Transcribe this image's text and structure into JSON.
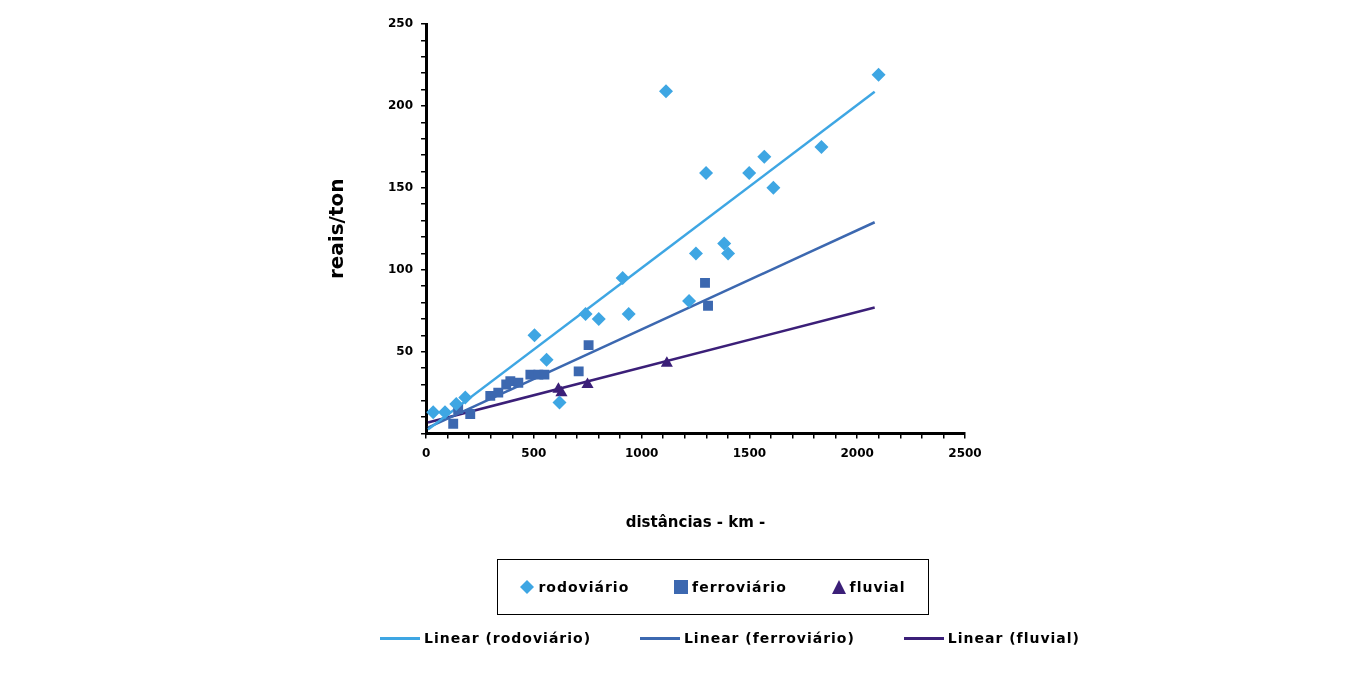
{
  "chart_data": {
    "type": "scatter",
    "xlabel": "distâncias - km -",
    "ylabel": "reais/ton",
    "xlim": [
      0,
      2500
    ],
    "ylim": [
      0,
      250
    ],
    "xticks": [
      0,
      {
        "value": 100,
        "label": null
      },
      {
        "value": 200,
        "label": null
      },
      {
        "value": 300,
        "label": null
      },
      {
        "value": 400,
        "label": null
      },
      500,
      {
        "value": 600,
        "label": null
      },
      {
        "value": 700,
        "label": null
      },
      {
        "value": 800,
        "label": null
      },
      {
        "value": 900,
        "label": null
      },
      1000,
      {
        "value": 1100,
        "label": null
      },
      {
        "value": 1200,
        "label": null
      },
      {
        "value": 1300,
        "label": null
      },
      {
        "value": 1400,
        "label": null
      },
      1500,
      {
        "value": 1600,
        "label": null
      },
      {
        "value": 1700,
        "label": null
      },
      {
        "value": 1800,
        "label": null
      },
      {
        "value": 1900,
        "label": null
      },
      2000,
      {
        "value": 2100,
        "label": null
      },
      {
        "value": 2200,
        "label": null
      },
      {
        "value": 2300,
        "label": null
      },
      {
        "value": 2400,
        "label": null
      },
      2500
    ],
    "yticks": [
      {
        "value": 0,
        "label": null
      },
      {
        "value": 10,
        "label": null
      },
      {
        "value": 20,
        "label": null
      },
      {
        "value": 30,
        "label": null
      },
      {
        "value": 40,
        "label": null
      },
      50,
      {
        "value": 60,
        "label": null
      },
      {
        "value": 70,
        "label": null
      },
      {
        "value": 80,
        "label": null
      },
      {
        "value": 90,
        "label": null
      },
      100,
      {
        "value": 110,
        "label": null
      },
      {
        "value": 120,
        "label": null
      },
      {
        "value": 130,
        "label": null
      },
      {
        "value": 140,
        "label": null
      },
      150,
      {
        "value": 160,
        "label": null
      },
      {
        "value": 170,
        "label": null
      },
      {
        "value": 180,
        "label": null
      },
      {
        "value": 190,
        "label": null
      },
      200,
      {
        "value": 210,
        "label": null
      },
      {
        "value": 220,
        "label": null
      },
      {
        "value": 230,
        "label": null
      },
      {
        "value": 240,
        "label": null
      },
      250
    ],
    "grid": false,
    "legend": "bottom",
    "series": [
      {
        "name": "rodoviário",
        "marker": "diamond",
        "color": "#3ea6e3",
        "x": [
          33,
          88,
          140,
          182,
          503,
          559,
          619,
          740,
          801,
          912,
          940,
          1113,
          1220,
          1252,
          1299,
          1383,
          1401,
          1499,
          1569,
          1611,
          1834,
          2099
        ],
        "values": [
          13,
          13,
          18,
          22,
          60,
          45,
          19,
          73,
          70,
          95,
          73,
          209,
          81,
          110,
          159,
          116,
          110,
          159,
          169,
          150,
          175,
          219
        ]
      },
      {
        "name": "ferroviário",
        "marker": "square",
        "color": "#3c68b0",
        "x": [
          126,
          149,
          205,
          298,
          335,
          372,
          391,
          428,
          484,
          521,
          549,
          708,
          754,
          1294,
          1308
        ],
        "values": [
          6,
          15,
          12,
          23,
          25,
          30,
          32,
          31,
          36,
          36,
          36,
          38,
          54,
          92,
          78
        ]
      },
      {
        "name": "fluvial",
        "marker": "triangle",
        "color": "#3b1f78",
        "x": [
          614,
          628,
          749,
          1117
        ],
        "values": [
          27,
          25,
          30,
          43
        ]
      },
      {
        "name": "Linear (rodoviário)",
        "type": "line",
        "marker": "none",
        "color": "#3ea6e3",
        "x": [
          9,
          2081
        ],
        "values": [
          2.5,
          208.6
        ]
      },
      {
        "name": "Linear (ferroviário)",
        "type": "line",
        "marker": "none",
        "color": "#3c68b0",
        "x": [
          9,
          2081
        ],
        "values": [
          3.7,
          129
        ]
      },
      {
        "name": "Linear (fluvial)",
        "type": "line",
        "marker": "none",
        "color": "#3b1f78",
        "x": [
          9,
          2081
        ],
        "values": [
          6.8,
          77
        ]
      }
    ]
  }
}
